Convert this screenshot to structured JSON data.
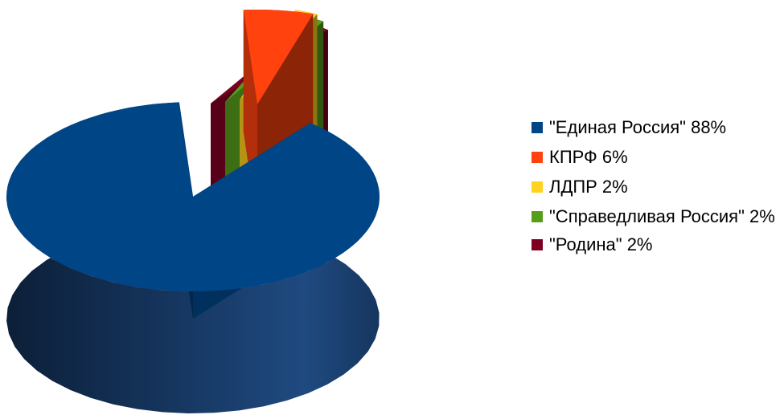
{
  "chart_data": {
    "type": "pie",
    "three_d": true,
    "exploded": true,
    "legend_position": "right",
    "slices": [
      {
        "label": "\"Единая Россия\" 88%",
        "value": 88,
        "color": "#004586"
      },
      {
        "label": "КПРФ 6%",
        "value": 6,
        "color": "#ff420e"
      },
      {
        "label": "ЛДПР 2%",
        "value": 2,
        "color": "#ffd320"
      },
      {
        "label": "\"Справедливая Россия\" 2%",
        "value": 2,
        "color": "#579d1c"
      },
      {
        "label": "\"Родина\" 2%",
        "value": 2,
        "color": "#7e0021"
      }
    ]
  }
}
